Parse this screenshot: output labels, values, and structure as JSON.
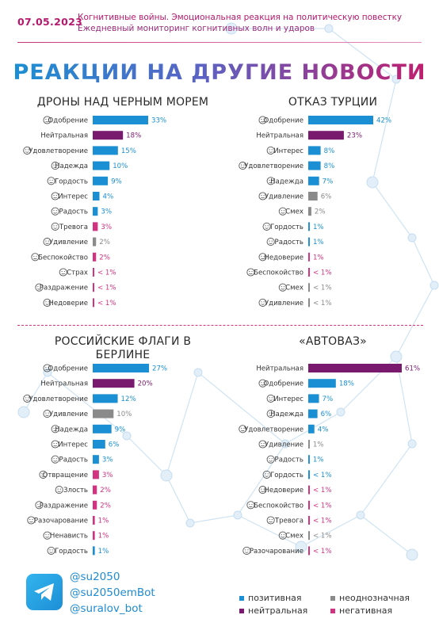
{
  "header": {
    "date": "07.05.2023",
    "line1": "Когнитивные войны. Эмоциональная реакция на политическую повестку",
    "line2": "Ежедневный мониторинг когнитивных волн и ударов"
  },
  "main_title": "РЕАКЦИИ НА ДРУГИЕ НОВОСТИ",
  "colors": {
    "positive": "#1b8fd3",
    "neutral": "#7a1a6e",
    "ambiguous": "#8a8a8a",
    "negative": "#d2327f"
  },
  "chart_data": [
    {
      "type": "bar",
      "title": "ДРОНЫ НАД ЧЕРНЫМ МОРЕМ",
      "categories": [
        "Одобрение",
        "Нейтральная",
        "Удовлетворение",
        "Надежда",
        "Гордость",
        "Интерес",
        "Радость",
        "Тревога",
        "Удивление",
        "Беспокойство",
        "Страх",
        "Раздражение",
        "Недоверие"
      ],
      "values": [
        33,
        18,
        15,
        10,
        9,
        4,
        3,
        3,
        2,
        2,
        0.5,
        0.5,
        0.5
      ],
      "labels": [
        "33%",
        "18%",
        "15%",
        "10%",
        "9%",
        "4%",
        "3%",
        "3%",
        "2%",
        "2%",
        "< 1%",
        "< 1%",
        "< 1%"
      ],
      "sentiment": [
        "positive",
        "neutral",
        "positive",
        "positive",
        "positive",
        "positive",
        "positive",
        "negative",
        "ambiguous",
        "negative",
        "negative",
        "negative",
        "negative"
      ],
      "icons": [
        "thumbs-up-icon",
        "",
        "satisfied-face-icon",
        "hope-icon",
        "trophy-icon",
        "interest-icon",
        "joy-face-icon",
        "anxiety-face-icon",
        "surprise-face-icon",
        "worry-face-icon",
        "fear-face-icon",
        "annoyed-face-icon",
        "distrust-face-icon"
      ]
    },
    {
      "type": "bar",
      "title": "ОТКАЗ ТУРЦИИ",
      "categories": [
        "Одобрение",
        "Нейтральная",
        "Интерес",
        "Удовлетворение",
        "Надежда",
        "Удивление",
        "Смех",
        "Гордость",
        "Радость",
        "Недоверие",
        "Беспокойство",
        "Смех",
        "Удивление"
      ],
      "values": [
        42,
        23,
        8,
        8,
        7,
        6,
        2,
        1,
        1,
        1,
        0.5,
        0.5,
        0.5
      ],
      "labels": [
        "42%",
        "23%",
        "8%",
        "8%",
        "7%",
        "6%",
        "2%",
        "1%",
        "1%",
        "1%",
        "< 1%",
        "< 1%",
        "< 1%"
      ],
      "sentiment": [
        "positive",
        "neutral",
        "positive",
        "positive",
        "positive",
        "ambiguous",
        "ambiguous",
        "positive",
        "positive",
        "negative",
        "negative",
        "ambiguous",
        "ambiguous"
      ],
      "icons": [
        "thumbs-up-icon",
        "",
        "interest-icon",
        "satisfied-face-icon",
        "hope-icon",
        "surprise-face-icon",
        "laugh-face-icon",
        "trophy-icon",
        "joy-face-icon",
        "distrust-face-icon",
        "worry-face-icon",
        "laugh-face-icon",
        "surprise-face-icon"
      ]
    },
    {
      "type": "bar",
      "title": "РОССИЙСКИЕ ФЛАГИ В БЕРЛИНЕ",
      "categories": [
        "Одобрение",
        "Нейтральная",
        "Удовлетворение",
        "Удивление",
        "Надежда",
        "Интерес",
        "Радость",
        "Отвращение",
        "Злость",
        "Раздражение",
        "Разочарование",
        "Ненависть",
        "Гордость"
      ],
      "values": [
        27,
        20,
        12,
        10,
        9,
        6,
        3,
        3,
        2,
        2,
        1,
        1,
        1
      ],
      "labels": [
        "27%",
        "20%",
        "12%",
        "10%",
        "9%",
        "6%",
        "3%",
        "3%",
        "2%",
        "2%",
        "1%",
        "1%",
        "1%"
      ],
      "sentiment": [
        "positive",
        "neutral",
        "positive",
        "ambiguous",
        "positive",
        "positive",
        "positive",
        "negative",
        "negative",
        "negative",
        "negative",
        "negative",
        "positive"
      ],
      "icons": [
        "thumbs-up-icon",
        "",
        "satisfied-face-icon",
        "surprise-face-icon",
        "hope-icon",
        "interest-icon",
        "joy-face-icon",
        "disgust-face-icon",
        "anger-face-icon",
        "annoyed-face-icon",
        "disappointed-face-icon",
        "hate-face-icon",
        "trophy-icon"
      ]
    },
    {
      "type": "bar",
      "title": "«АВТОВАЗ»",
      "categories": [
        "Нейтральная",
        "Одобрение",
        "Интерес",
        "Надежда",
        "Удовлетворение",
        "Удивление",
        "Радость",
        "Гордость",
        "Недоверие",
        "Беспокойство",
        "Тревога",
        "Смех",
        "Разочарование"
      ],
      "values": [
        61,
        18,
        7,
        6,
        4,
        1,
        1,
        0.5,
        0.5,
        0.5,
        0.5,
        0.5,
        0.5
      ],
      "labels": [
        "61%",
        "18%",
        "7%",
        "6%",
        "4%",
        "1%",
        "1%",
        "< 1%",
        "< 1%",
        "< 1%",
        "< 1%",
        "< 1%",
        "< 1%"
      ],
      "sentiment": [
        "neutral",
        "positive",
        "positive",
        "positive",
        "positive",
        "ambiguous",
        "positive",
        "positive",
        "negative",
        "negative",
        "negative",
        "ambiguous",
        "negative"
      ],
      "icons": [
        "",
        "thumbs-up-icon",
        "interest-icon",
        "hope-icon",
        "satisfied-face-icon",
        "surprise-face-icon",
        "joy-face-icon",
        "trophy-icon",
        "distrust-face-icon",
        "worry-face-icon",
        "anxiety-face-icon",
        "laugh-face-icon",
        "disappointed-face-icon"
      ]
    }
  ],
  "footer": {
    "handles": [
      "@su2050",
      "@su2050emBot",
      "@suralov_bot"
    ],
    "legend": [
      {
        "label": "позитивная",
        "key": "positive"
      },
      {
        "label": "неоднозначная",
        "key": "ambiguous"
      },
      {
        "label": "нейтральная",
        "key": "neutral"
      },
      {
        "label": "негативная",
        "key": "negative"
      }
    ]
  }
}
